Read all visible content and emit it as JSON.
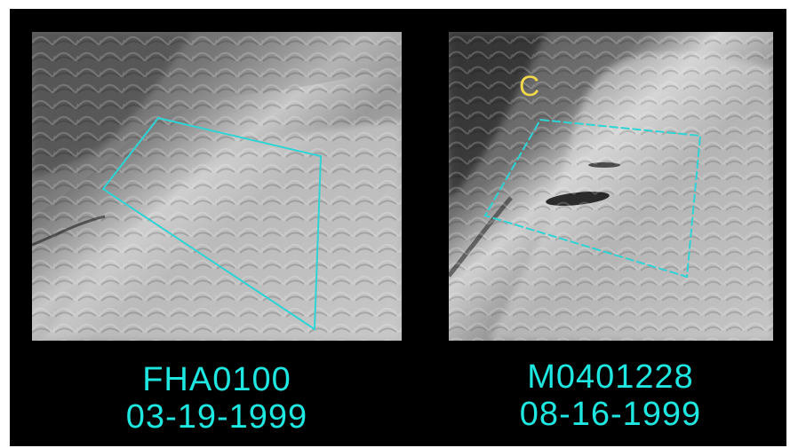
{
  "colors": {
    "background": "#000000",
    "caption": "#1ee6e0",
    "outline": "#30d3d4",
    "marker": "#f1d84b"
  },
  "panels": [
    {
      "caption_id": "FHA0100",
      "caption_date": "03-19-1999"
    },
    {
      "caption_id": "M0401228",
      "caption_date": "08-16-1999",
      "marker_label": "C"
    }
  ]
}
